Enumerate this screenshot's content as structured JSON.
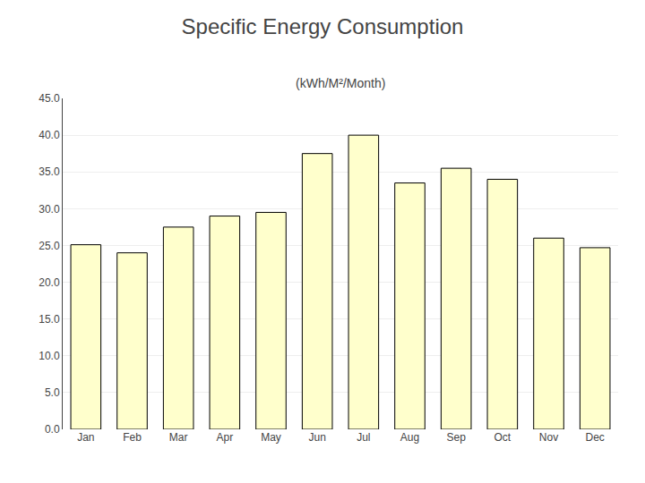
{
  "chart_data": {
    "type": "bar",
    "title": "Specific Energy Consumption",
    "subtitle": "(kWh/M²/Month)",
    "categories": [
      "Jan",
      "Feb",
      "Mar",
      "Apr",
      "May",
      "Jun",
      "Jul",
      "Aug",
      "Sep",
      "Oct",
      "Nov",
      "Dec"
    ],
    "values": [
      25.1,
      24.0,
      27.5,
      29.0,
      29.5,
      37.5,
      40.0,
      33.5,
      35.5,
      34.0,
      26.0,
      24.7
    ],
    "color": "#FFFFCC",
    "ylim": [
      0.0,
      45.0
    ],
    "yticks": [
      {
        "value": 0,
        "label": "0.0"
      },
      {
        "value": 5,
        "label": "5.0"
      },
      {
        "value": 10,
        "label": "10.0"
      },
      {
        "value": 15,
        "label": "15.0"
      },
      {
        "value": 20,
        "label": "20.0"
      },
      {
        "value": 25,
        "label": "25.0"
      },
      {
        "value": 30,
        "label": "30.0"
      },
      {
        "value": 35,
        "label": "35.0"
      },
      {
        "value": 40,
        "label": "40.0"
      },
      {
        "value": 45,
        "label": "45.0"
      }
    ],
    "grid": true
  }
}
